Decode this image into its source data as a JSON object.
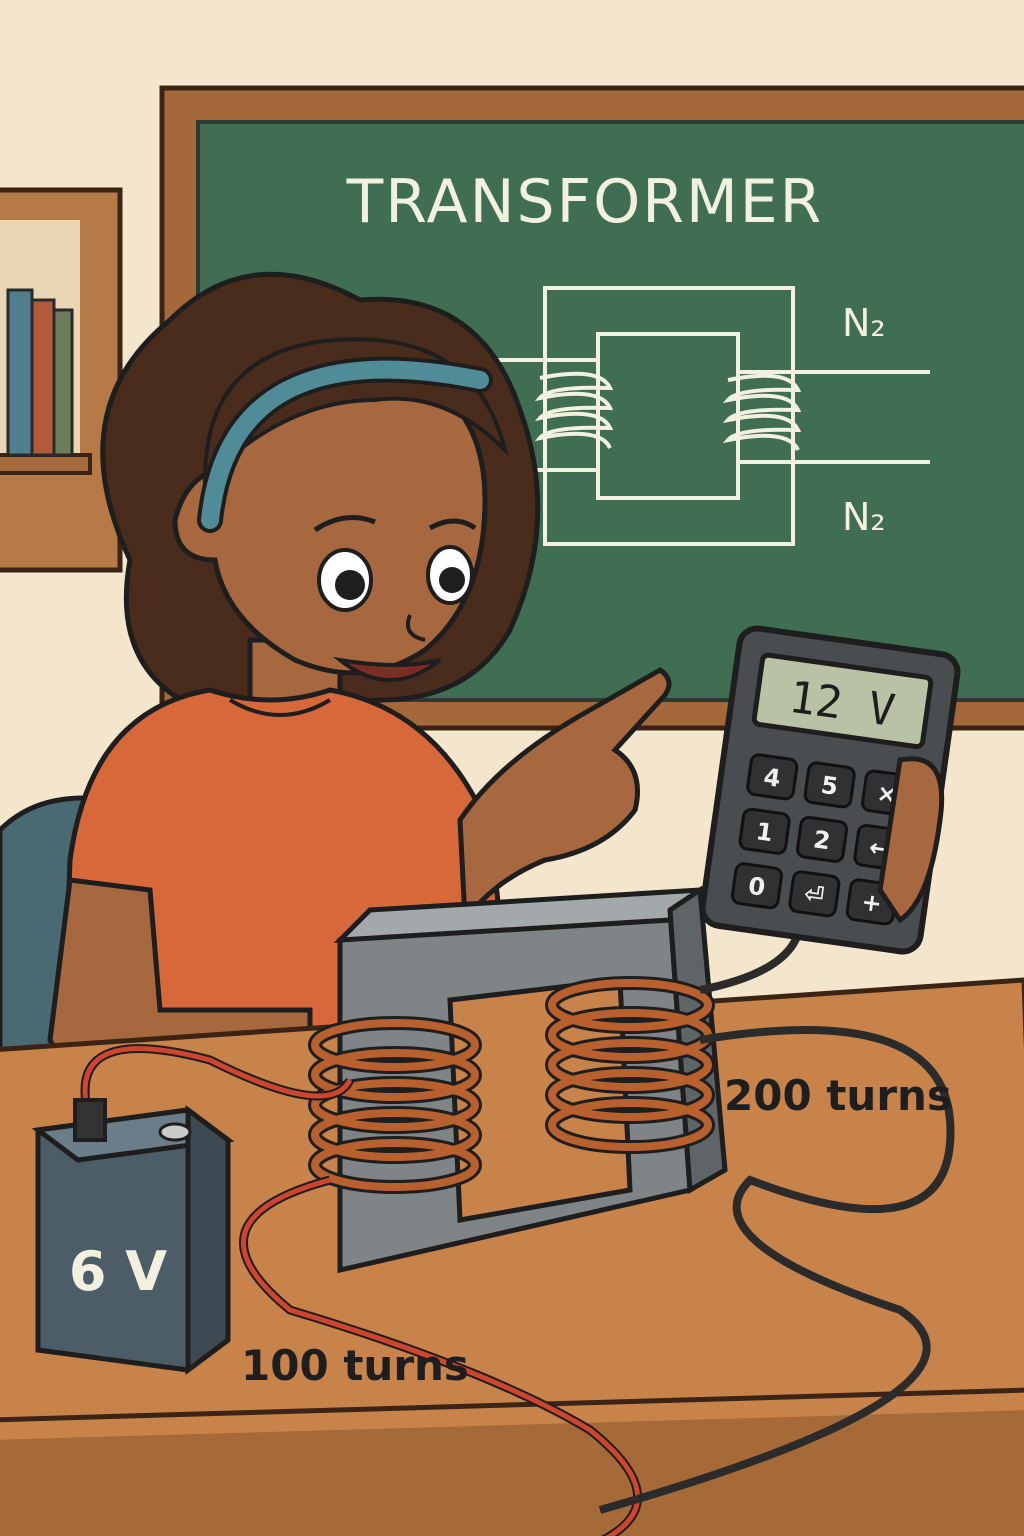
{
  "chalkboard": {
    "title": "TRANSFORMER",
    "top_label": "N₂",
    "bottom_label": "N₂"
  },
  "meter": {
    "display": "12 V",
    "keys": [
      "4",
      "5",
      "×",
      "1",
      "2",
      "←",
      "0",
      "⏎",
      "+"
    ]
  },
  "battery": {
    "label": "6 V"
  },
  "coils": {
    "primary_label": "100 turns",
    "secondary_label": "200 turns"
  },
  "colors": {
    "wall": "#f3e6cc",
    "chalkboard": "#3f6e52",
    "board_frame": "#a5683a",
    "desk": "#c7834a",
    "shirt": "#d7683a",
    "skin": "#a8683f",
    "hair": "#4a2c1c",
    "headband": "#4f8c97",
    "copper": "#b8612e",
    "core": "#7f8486",
    "battery": "#4d5d68",
    "meter": "#4a4d50",
    "lcd": "#b9c2a5"
  }
}
